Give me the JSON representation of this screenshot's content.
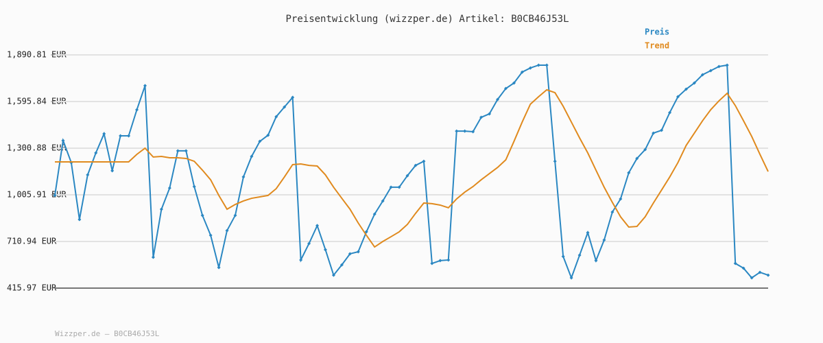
{
  "chart_data": {
    "type": "line",
    "title": "Preisentwicklung (wizzper.de) Artikel: B0CB46J53L",
    "footer": "Wizzper.de – B0CB46J53L",
    "ylim": [
      415.97,
      1890.81
    ],
    "yticks": [
      {
        "value": 415.97,
        "label": "415.97 EUR"
      },
      {
        "value": 710.94,
        "label": "710.94 EUR"
      },
      {
        "value": 1005.91,
        "label": "1,005.91 EUR"
      },
      {
        "value": 1300.88,
        "label": "1,300.88 EUR"
      },
      {
        "value": 1595.84,
        "label": "1,595.84 EUR"
      },
      {
        "value": 1890.81,
        "label": "1,890.81 EUR"
      }
    ],
    "grid": true,
    "legend": "top-right",
    "series": [
      {
        "name": "Preis",
        "color": "#2a87c2",
        "markers": true,
        "values": [
          1002,
          1349,
          1210,
          850,
          1132,
          1271,
          1392,
          1158,
          1379,
          1379,
          1544,
          1696,
          611,
          915,
          1049,
          1284,
          1284,
          1058,
          876,
          750,
          546,
          780,
          876,
          1119,
          1249,
          1344,
          1383,
          1500,
          1561,
          1622,
          594,
          698,
          811,
          659,
          498,
          563,
          633,
          646,
          772,
          884,
          967,
          1054,
          1054,
          1127,
          1192,
          1218,
          572,
          590,
          594,
          1409,
          1409,
          1405,
          1496,
          1518,
          1609,
          1678,
          1713,
          1782,
          1808,
          1826,
          1826,
          1218,
          616,
          481,
          624,
          767,
          590,
          720,
          897,
          980,
          1145,
          1236,
          1292,
          1396,
          1414,
          1526,
          1626,
          1674,
          1713,
          1765,
          1791,
          1817,
          1826,
          572,
          542,
          481,
          516,
          498
        ]
      },
      {
        "name": "Trend",
        "color": "#e08a1e",
        "markers": false,
        "values": [
          1214,
          1214,
          1214,
          1214,
          1214,
          1214,
          1214,
          1214,
          1214,
          1214,
          1262,
          1301,
          1245,
          1249,
          1240,
          1240,
          1236,
          1218,
          1162,
          1101,
          1002,
          915,
          945,
          967,
          984,
          993,
          1002,
          1045,
          1119,
          1197,
          1201,
          1192,
          1188,
          1132,
          1054,
          984,
          915,
          828,
          750,
          676,
          711,
          741,
          772,
          819,
          889,
          954,
          950,
          941,
          924,
          980,
          1023,
          1058,
          1101,
          1140,
          1179,
          1227,
          1344,
          1466,
          1579,
          1626,
          1670,
          1652,
          1566,
          1466,
          1366,
          1271,
          1162,
          1054,
          958,
          867,
          802,
          806,
          867,
          954,
          1036,
          1119,
          1210,
          1318,
          1396,
          1474,
          1544,
          1600,
          1648,
          1570,
          1474,
          1375,
          1262,
          1153
        ]
      }
    ]
  }
}
